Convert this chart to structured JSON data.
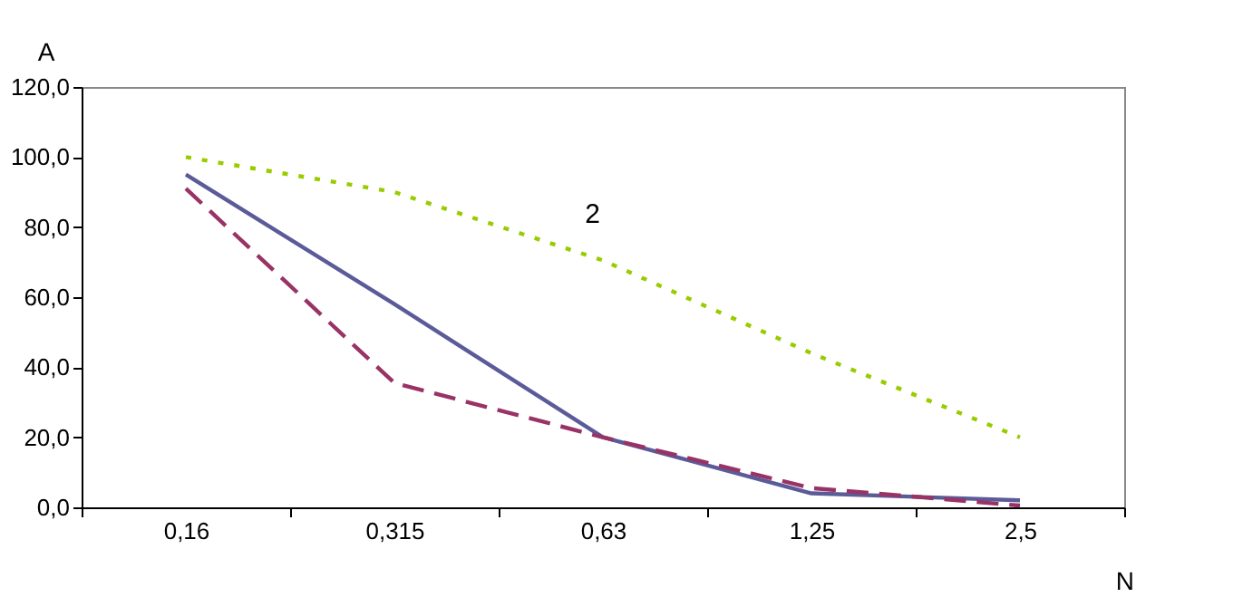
{
  "chart_data": {
    "type": "line",
    "xlabel": "N",
    "ylabel": "A",
    "categories": [
      "0,16",
      "0,315",
      "0,63",
      "1,25",
      "2,5"
    ],
    "series": [
      {
        "color": "#5b5b9a",
        "line_style": "solid",
        "values": [
          95,
          58,
          20,
          4,
          2
        ]
      },
      {
        "color": "#993366",
        "line_style": "dashed",
        "values": [
          91,
          35.5,
          20,
          5.5,
          0.5
        ]
      },
      {
        "color": "#99cc00",
        "line_style": "dotted",
        "values": [
          100,
          90,
          70.5,
          44,
          20
        ]
      }
    ],
    "ylim": [
      0,
      120
    ],
    "yticks": [
      {
        "value": 0,
        "label": "0,0"
      },
      {
        "value": 20,
        "label": "20,0"
      },
      {
        "value": 40,
        "label": "40,0"
      },
      {
        "value": 60,
        "label": "60,0"
      },
      {
        "value": 80,
        "label": "80,0"
      },
      {
        "value": 100,
        "label": "100,0"
      },
      {
        "value": 120,
        "label": "120,0"
      }
    ],
    "annotations": [
      "2"
    ],
    "grid": false,
    "marker": "none"
  }
}
